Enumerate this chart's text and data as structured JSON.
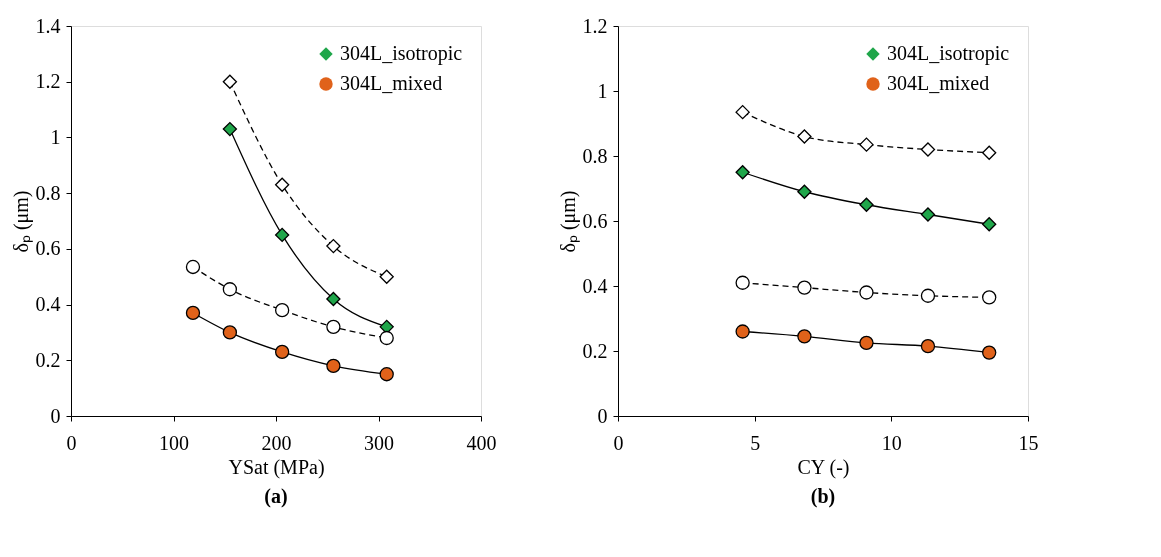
{
  "chart_data": [
    {
      "type": "line",
      "xlabel": "YSat (MPa)",
      "ylabel": "δₚ (μm)",
      "annotations": [
        "(a)"
      ],
      "xlim": [
        0,
        400
      ],
      "xticks": [
        0,
        100,
        200,
        300,
        400
      ],
      "ylim": [
        0,
        1.4
      ],
      "yticks": [
        0,
        0.2,
        0.4,
        0.6,
        0.8,
        1,
        1.2,
        1.4
      ],
      "grid": false,
      "legend": "top right",
      "series": [
        {
          "name": "304L_isotropic",
          "color": "#1fa64a",
          "marker": "diamond",
          "line_style": "solid",
          "x": [
            155,
            206,
            256,
            308
          ],
          "values": [
            1.03,
            0.65,
            0.42,
            0.32
          ]
        },
        {
          "name": "304L_mixed",
          "color": "#e0621a",
          "marker": "circle",
          "line_style": "solid",
          "x": [
            119,
            155,
            206,
            256,
            308
          ],
          "values": [
            0.37,
            0.3,
            0.23,
            0.18,
            0.15
          ]
        },
        {
          "color": "#ffffff",
          "marker": "diamond",
          "line_style": "dashed",
          "x": [
            155,
            206,
            256,
            308
          ],
          "values": [
            1.2,
            0.83,
            0.61,
            0.5
          ]
        },
        {
          "color": "#ffffff",
          "marker": "circle",
          "line_style": "dashed",
          "x": [
            119,
            155,
            206,
            256,
            308
          ],
          "values": [
            0.535,
            0.455,
            0.38,
            0.32,
            0.28
          ]
        }
      ]
    },
    {
      "type": "line",
      "xlabel": "CY (-)",
      "ylabel": "δₚ (μm)",
      "annotations": [
        "(b)"
      ],
      "xlim": [
        0,
        15
      ],
      "xticks": [
        0,
        5,
        10,
        15
      ],
      "ylim": [
        0,
        1.2
      ],
      "yticks": [
        0,
        0.2,
        0.4,
        0.6,
        0.8,
        1,
        1.2
      ],
      "grid": false,
      "legend": "top right",
      "series": [
        {
          "name": "304L_isotropic",
          "color": "#1fa64a",
          "marker": "diamond",
          "line_style": "solid",
          "x": [
            4.56,
            6.82,
            9.09,
            11.34,
            13.58
          ],
          "values": [
            0.75,
            0.69,
            0.65,
            0.62,
            0.59
          ]
        },
        {
          "name": "304L_mixed",
          "color": "#e0621a",
          "marker": "circle",
          "line_style": "solid",
          "x": [
            4.56,
            6.82,
            9.09,
            11.34,
            13.58
          ],
          "values": [
            0.26,
            0.245,
            0.225,
            0.215,
            0.195
          ]
        },
        {
          "color": "#ffffff",
          "marker": "diamond",
          "line_style": "dashed",
          "x": [
            4.56,
            6.82,
            9.09,
            11.34,
            13.58
          ],
          "values": [
            0.935,
            0.86,
            0.835,
            0.82,
            0.81
          ]
        },
        {
          "color": "#ffffff",
          "marker": "circle",
          "line_style": "dashed",
          "x": [
            4.56,
            6.82,
            9.09,
            11.34,
            13.58
          ],
          "values": [
            0.41,
            0.395,
            0.38,
            0.37,
            0.365
          ]
        }
      ]
    }
  ]
}
